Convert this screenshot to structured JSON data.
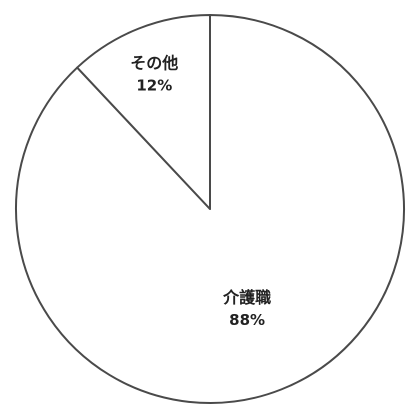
{
  "chart_data": {
    "type": "pie",
    "title": "",
    "start_angle_deg": 0,
    "direction": "clockwise",
    "slices": [
      {
        "label": "介護職",
        "value": 88,
        "value_label": "88%"
      },
      {
        "label": "その他",
        "value": 12,
        "value_label": "12%"
      }
    ],
    "legend": "none",
    "colors": {
      "fill": "#ffffff",
      "stroke": "#4a4a4a",
      "text": "#222222"
    }
  }
}
